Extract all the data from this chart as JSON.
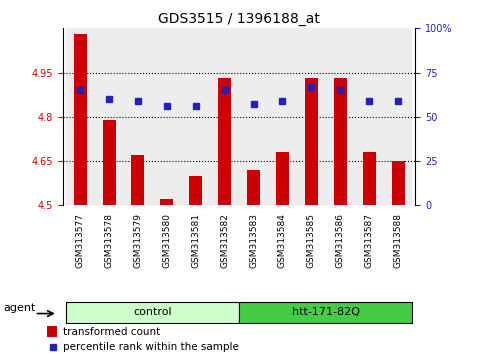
{
  "title": "GDS3515 / 1396188_at",
  "samples": [
    "GSM313577",
    "GSM313578",
    "GSM313579",
    "GSM313580",
    "GSM313581",
    "GSM313582",
    "GSM313583",
    "GSM313584",
    "GSM313585",
    "GSM313586",
    "GSM313587",
    "GSM313588"
  ],
  "bar_values": [
    5.08,
    4.79,
    4.67,
    4.52,
    4.6,
    4.93,
    4.62,
    4.68,
    4.93,
    4.93,
    4.68,
    4.65
  ],
  "percentile_pct": [
    65,
    60,
    59,
    56,
    56,
    65,
    57,
    59,
    67,
    65,
    59,
    59
  ],
  "ylim": [
    4.5,
    5.1
  ],
  "yticks": [
    4.5,
    4.65,
    4.8,
    4.95
  ],
  "ytick_labels": [
    "4.5",
    "4.65",
    "4.8",
    "4.95"
  ],
  "right_yticks_pct": [
    0,
    25,
    50,
    75,
    100
  ],
  "right_ytick_labels": [
    "0",
    "25",
    "50",
    "75",
    "100%"
  ],
  "bar_color": "#cc0000",
  "dot_color": "#2222bb",
  "col_bg_color": "#cccccc",
  "groups": [
    {
      "label": "control",
      "start": 0,
      "end": 6,
      "color": "#ccffcc"
    },
    {
      "label": "htt-171-82Q",
      "start": 6,
      "end": 12,
      "color": "#44cc44"
    }
  ],
  "agent_label": "agent",
  "legend_bar_label": "transformed count",
  "legend_dot_label": "percentile rank within the sample",
  "tick_label_fontsize": 7,
  "title_fontsize": 10,
  "left_tick_color": "#cc0000",
  "right_tick_color": "#2222bb"
}
